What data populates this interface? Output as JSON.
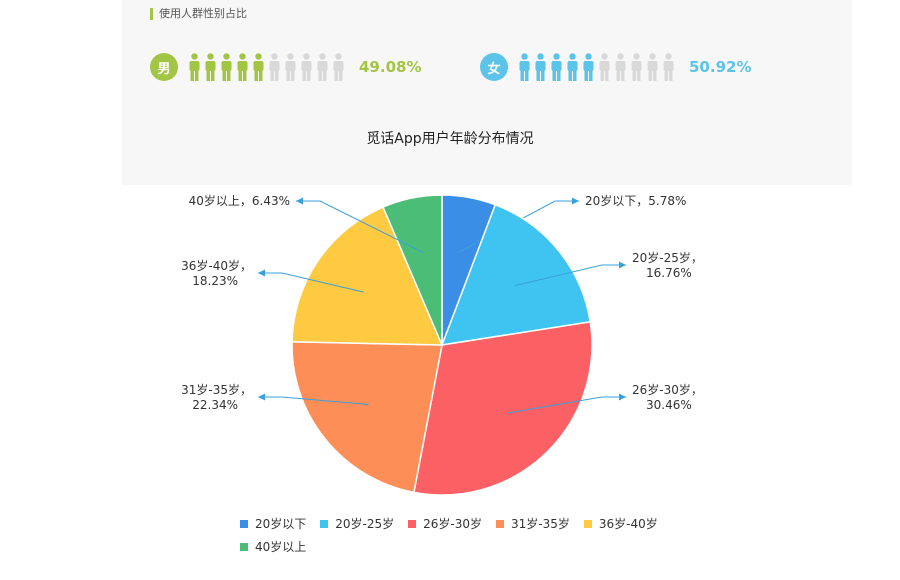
{
  "header": {
    "section_title": "使用人群性别占比"
  },
  "gender": {
    "male": {
      "label": "男",
      "percent": "49.08%",
      "filled_icons": 5,
      "total_icons": 10,
      "color": "#a3c545"
    },
    "female": {
      "label": "女",
      "percent": "50.92%",
      "filled_icons": 5,
      "total_icons": 10,
      "color": "#5cc3ea"
    }
  },
  "chart_data": {
    "type": "pie",
    "title": "觅话App用户年龄分布情况",
    "slices": [
      {
        "label": "20岁以下",
        "value": 5.78,
        "label_lines": [
          "20岁以下，5.78%"
        ],
        "color": "#3a8ee6"
      },
      {
        "label": "20岁-25岁",
        "value": 16.76,
        "label_lines": [
          "20岁-25岁，",
          "16.76%"
        ],
        "color": "#3fc3f0"
      },
      {
        "label": "26岁-30岁",
        "value": 30.46,
        "label_lines": [
          "26岁-30岁，",
          "30.46%"
        ],
        "color": "#fa6064"
      },
      {
        "label": "31岁-35岁",
        "value": 22.34,
        "label_lines": [
          "31岁-35岁，",
          "22.34%"
        ],
        "color": "#fd8e58"
      },
      {
        "label": "36岁-40岁",
        "value": 18.23,
        "label_lines": [
          "36岁-40岁，",
          "18.23%"
        ],
        "color": "#fdca42"
      },
      {
        "label": "40岁以上",
        "value": 6.43,
        "label_lines": [
          "40岁以上，6.43%"
        ],
        "color": "#4cbd77"
      }
    ],
    "legend_position": "bottom",
    "leader_color": "#3aa0dc"
  }
}
